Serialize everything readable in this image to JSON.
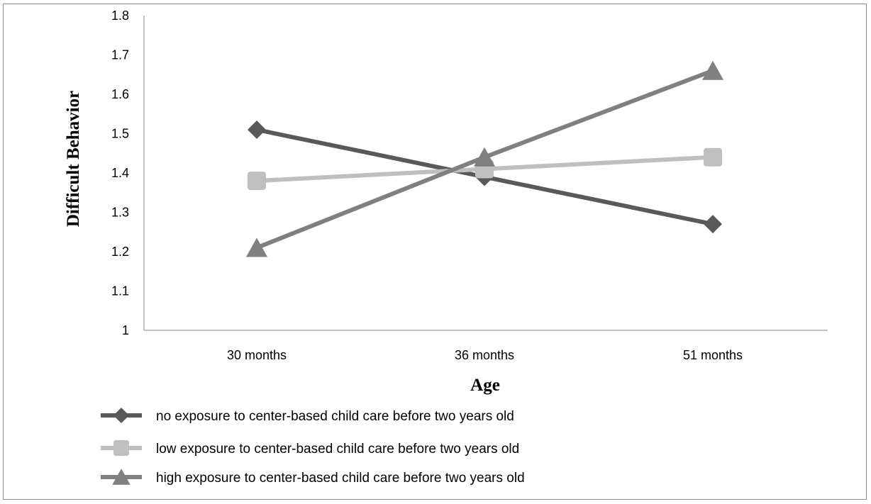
{
  "chart_data": {
    "type": "line",
    "categories": [
      "30 months",
      "36 months",
      "51 months"
    ],
    "xlabel": "Age",
    "ylabel": "Difficult Behavior",
    "ylim": [
      1,
      1.8
    ],
    "yticks": [
      "1",
      "1.1",
      "1.2",
      "1.3",
      "1.4",
      "1.5",
      "1.6",
      "1.7",
      "1.8"
    ],
    "grid": false,
    "legend_position": "bottom",
    "series": [
      {
        "name": "no exposure to center-based child care before two years old",
        "values": [
          1.51,
          1.39,
          1.27
        ],
        "marker": "diamond",
        "color": "#595959"
      },
      {
        "name": "low exposure to center-based child care before two years old",
        "values": [
          1.38,
          1.41,
          1.44
        ],
        "marker": "square",
        "color": "#bfbfbf"
      },
      {
        "name": "high exposure to center-based child care before two years old",
        "values": [
          1.21,
          1.44,
          1.66
        ],
        "marker": "triangle",
        "color": "#808080"
      }
    ]
  }
}
